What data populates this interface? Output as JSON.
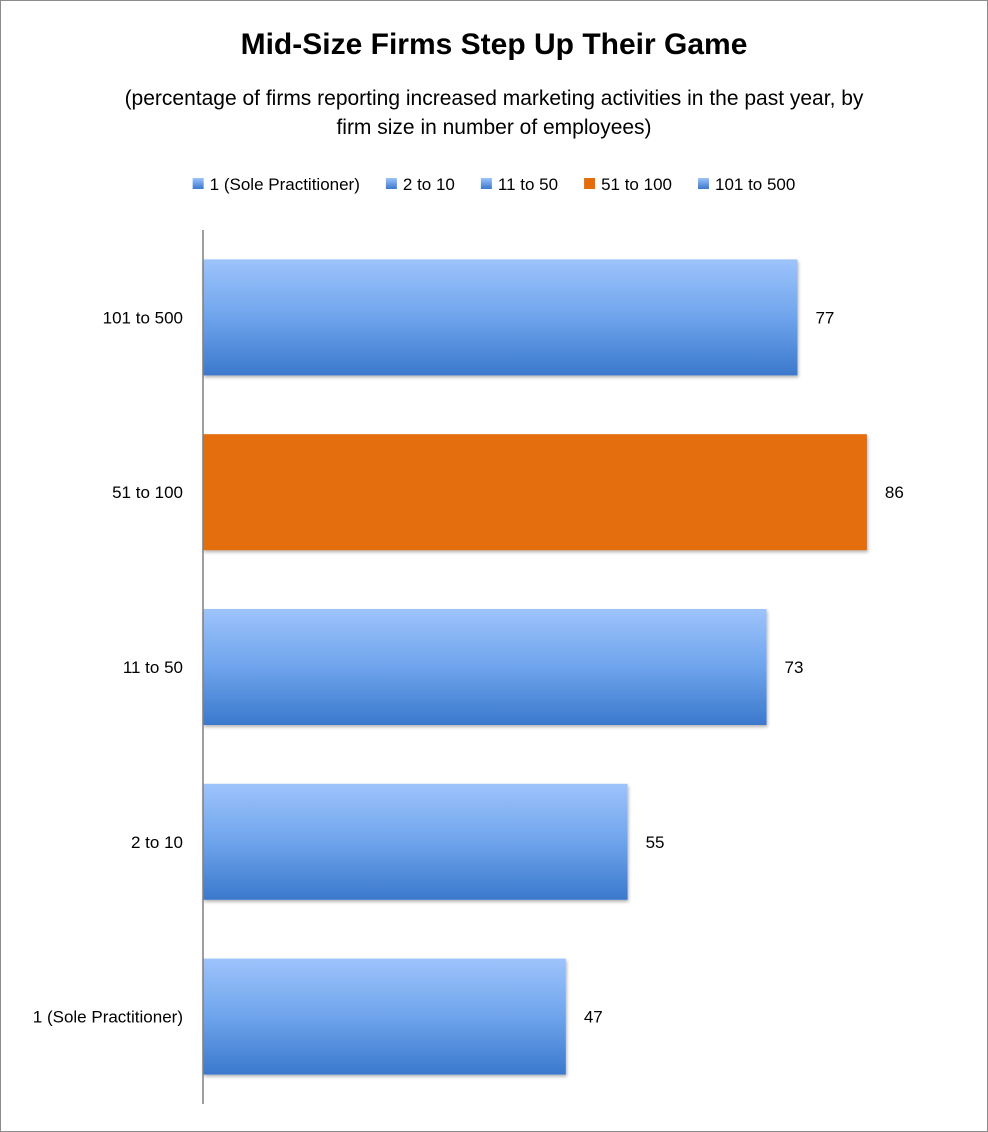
{
  "chart_data": {
    "type": "bar",
    "orientation": "horizontal",
    "title": "Mid-Size Firms Step Up Their Game",
    "subtitle": "(percentage of firms reporting increased marketing activities in the past year, by firm size in number of employees)",
    "categories": [
      "1 (Sole Practitioner)",
      "2 to 10",
      "11 to 50",
      "51 to 100",
      "101 to 500"
    ],
    "values": [
      47,
      55,
      73,
      86,
      77
    ],
    "value_labels": [
      "47",
      "55",
      "73",
      "86",
      "77"
    ],
    "colors": [
      "#4a88d6",
      "#4a88d6",
      "#4a88d6",
      "#e46d0a",
      "#4a88d6"
    ],
    "highlight_category": "51 to 100",
    "legend": {
      "position": "top",
      "entries": [
        "1 (Sole Practitioner)",
        "2 to 10",
        "11 to 50",
        "51 to 100",
        "101 to 500"
      ]
    },
    "xlim": [
      0,
      100
    ],
    "grid": false
  }
}
